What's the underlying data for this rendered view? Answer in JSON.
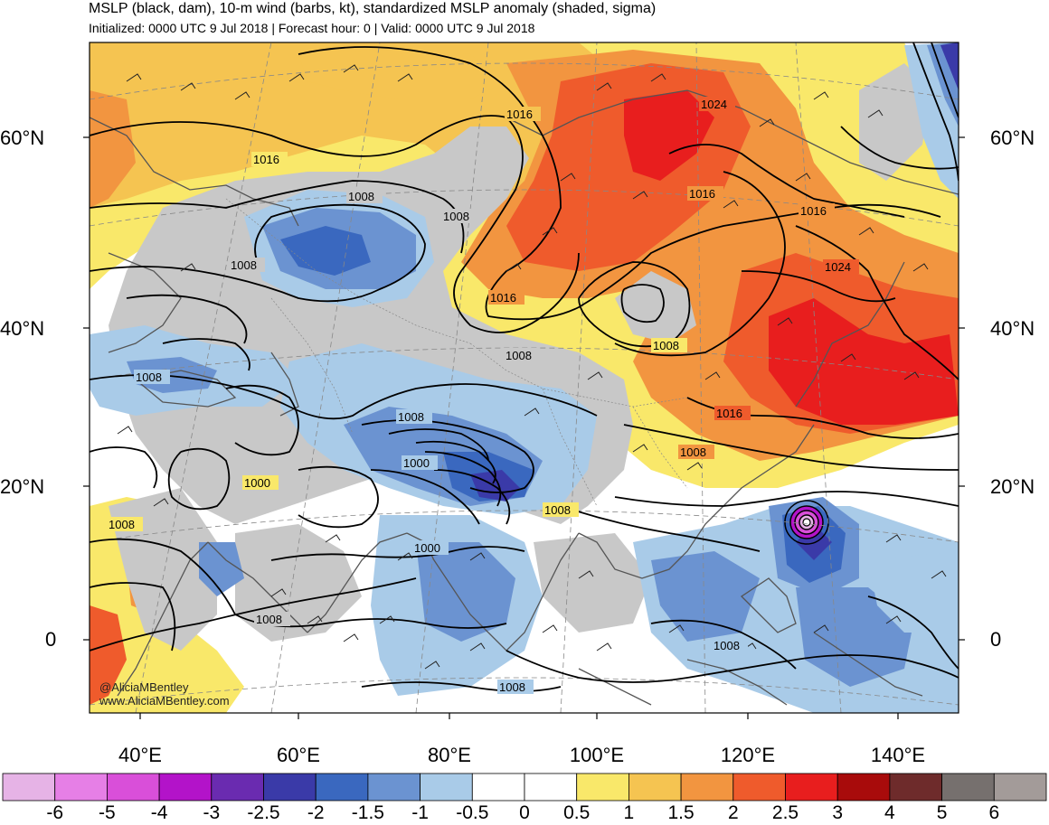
{
  "title": "MSLP (black, dam), 10-m wind (barbs, kt), standardized MSLP anomaly (shaded, sigma)",
  "subtitle": "Initialized: 0000 UTC 9 Jul 2018 | Forecast hour: 0 | Valid: 0000 UTC 9 Jul 2018",
  "lat_labels": [
    "60°N",
    "40°N",
    "20°N",
    "0"
  ],
  "lon_labels": [
    "40°E",
    "60°E",
    "80°E",
    "100°E",
    "120°E",
    "140°E"
  ],
  "isobar_labels": [
    "1016",
    "1016",
    "1008",
    "1008",
    "1008",
    "1024",
    "1016",
    "1016",
    "1024",
    "1016",
    "1008",
    "1008",
    "1008",
    "1000",
    "1000",
    "1008",
    "1008",
    "1016",
    "1008",
    "1008",
    "1000",
    "1008",
    "1008",
    "1008"
  ],
  "colorbar": {
    "labels": [
      "-6",
      "-5",
      "-4",
      "-3",
      "-2.5",
      "-2",
      "-1.5",
      "-1",
      "-0.5",
      "0",
      "0.5",
      "1",
      "1.5",
      "2",
      "2.5",
      "3",
      "4",
      "5",
      "6"
    ],
    "colors": [
      "#e6b3e6",
      "#e67fe6",
      "#d94fd9",
      "#b313c9",
      "#6a2bb0",
      "#3a3aa8",
      "#3a68bf",
      "#6b93d1",
      "#a9cbe8",
      "#ffffff",
      "#ffffff",
      "#f9e86a",
      "#f5c451",
      "#f29540",
      "#ef5b2c",
      "#e81e1e",
      "#a80b0b",
      "#6e2b2b",
      "#76706e",
      "#a39b99"
    ]
  },
  "anomaly_colors": {
    "light_blue": "#a9cbe8",
    "mid_blue": "#6b93d1",
    "blue": "#3a68bf",
    "dark_blue": "#3a3aa8",
    "yellow": "#f9e86a",
    "light_orange": "#f5c451",
    "orange": "#f29540",
    "red_orange": "#ef5b2c",
    "red": "#e81e1e",
    "gray": "#c8c8c8",
    "magenta": "#b313c9"
  },
  "credits": [
    "@AliciaMBentley",
    "www.AliciaMBentley.com"
  ]
}
